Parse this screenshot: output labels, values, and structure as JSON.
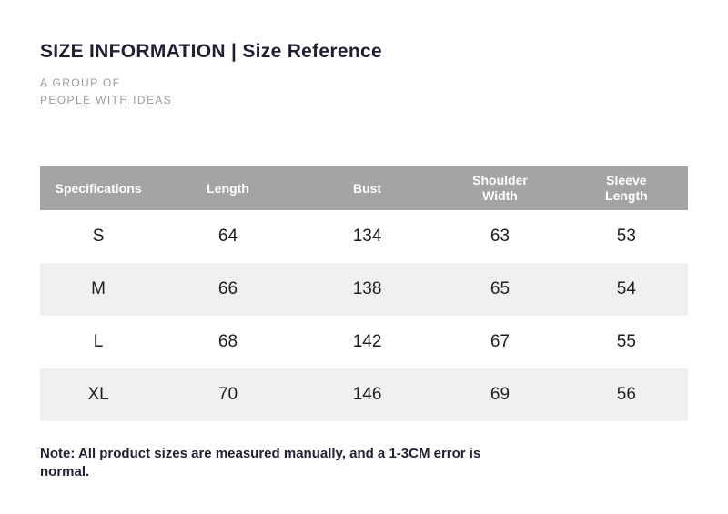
{
  "page": {
    "title": "SIZE INFORMATION | Size Reference",
    "subtitle_line1": "A GROUP OF",
    "subtitle_line2": "PEOPLE WITH IDEAS",
    "note": "Note: All product sizes are measured manually, and a 1-3CM error is normal."
  },
  "table": {
    "headers": [
      "Specifications",
      "Length",
      "Bust",
      "Shoulder\nWidth",
      "Sleeve\nLength"
    ],
    "column_widths": [
      "18%",
      "22%",
      "21%",
      "20%",
      "19%"
    ],
    "rows": [
      [
        "S",
        "64",
        "134",
        "63",
        "53"
      ],
      [
        "M",
        "66",
        "138",
        "65",
        "54"
      ],
      [
        "L",
        "68",
        "142",
        "67",
        "55"
      ],
      [
        "XL",
        "70",
        "146",
        "69",
        "56"
      ]
    ]
  },
  "colors": {
    "header_bg": "#a4a4a4",
    "header_text": "#ffffff",
    "alt_row_bg": "#f0f0f0",
    "title_text": "#221f33",
    "muted_text": "#9b9b9b"
  },
  "chart_data": {
    "type": "table",
    "title": "SIZE INFORMATION | Size Reference",
    "columns": [
      "Specifications",
      "Length",
      "Bust",
      "Shoulder Width",
      "Sleeve Length"
    ],
    "rows": [
      [
        "S",
        64,
        134,
        63,
        53
      ],
      [
        "M",
        66,
        138,
        65,
        54
      ],
      [
        "L",
        68,
        142,
        67,
        55
      ],
      [
        "XL",
        70,
        146,
        69,
        56
      ]
    ],
    "note": "Note: All product sizes are measured manually, and a 1-3CM error is normal.",
    "layout_hints": {
      "header_style": "white bold text on gray band",
      "row_striping": "white / light-gray alternating starting with white",
      "alignment": "all cells centered"
    }
  }
}
